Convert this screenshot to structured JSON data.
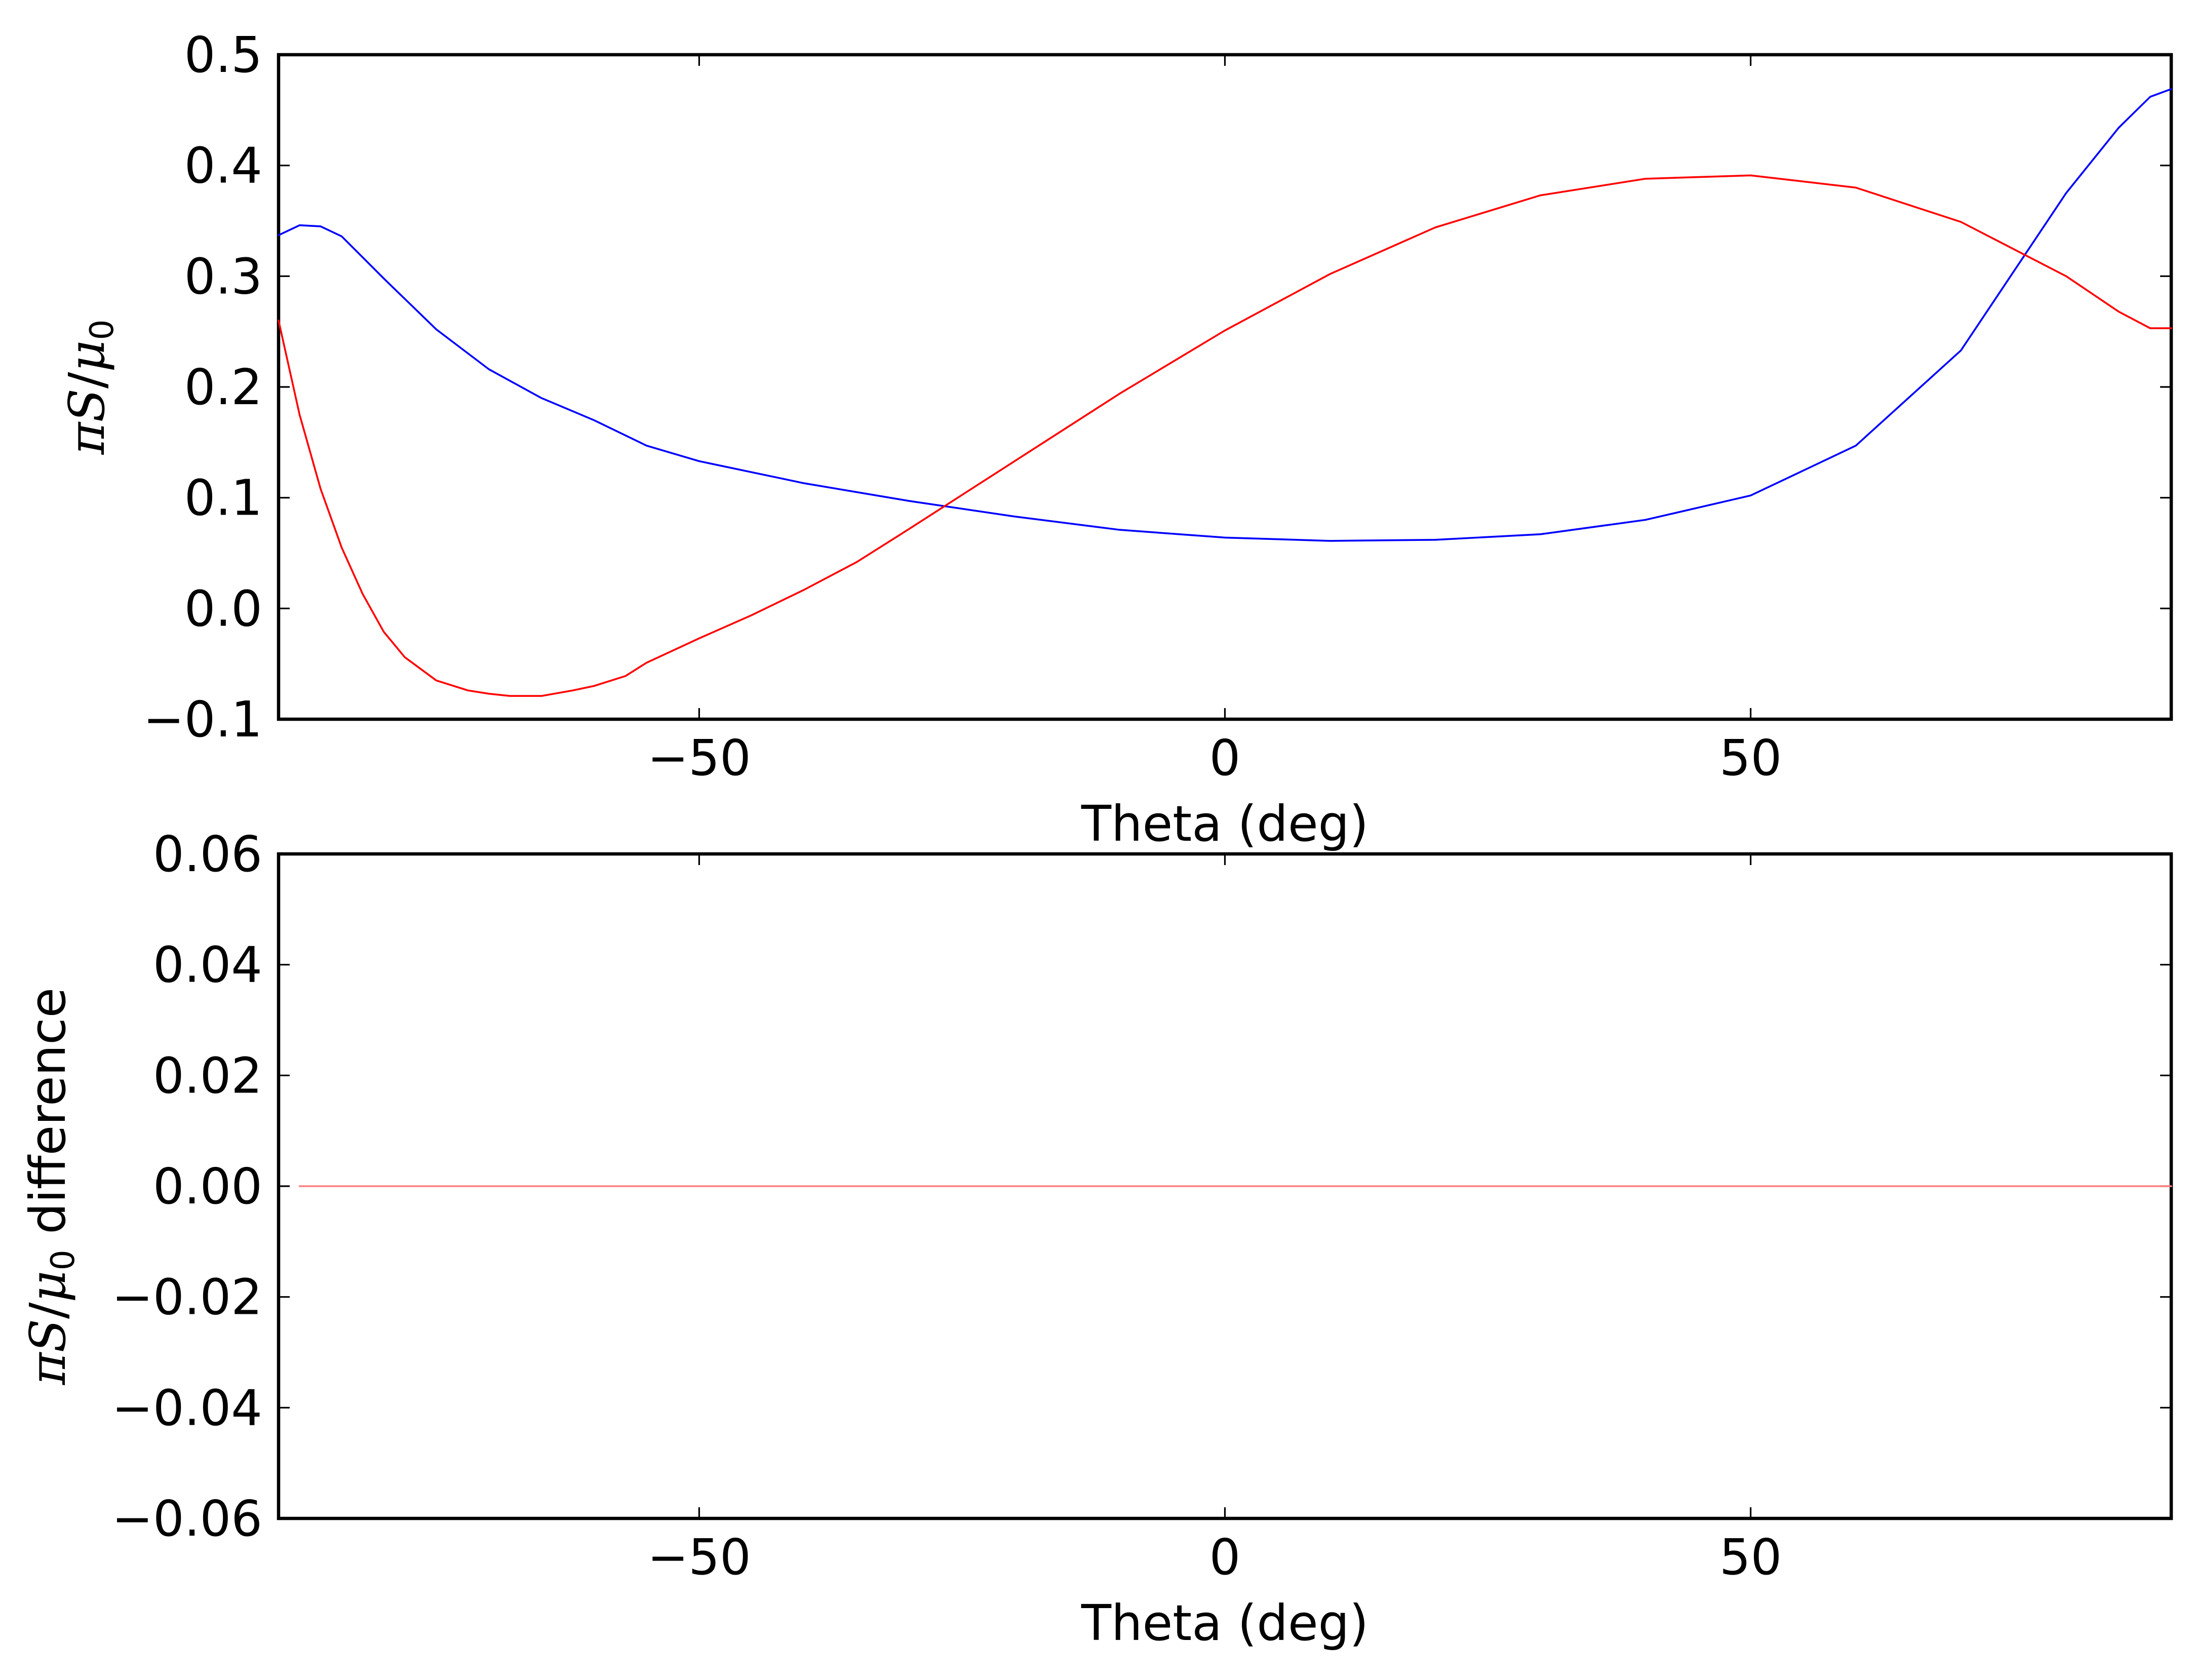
{
  "chart_data": [
    {
      "type": "line",
      "title": "",
      "xlabel": "Theta (deg)",
      "ylabel": "πS/μ0",
      "xlim": [
        -90,
        90
      ],
      "ylim": [
        -0.1,
        0.5
      ],
      "xticks": [
        -50,
        0,
        50
      ],
      "xtick_labels": [
        "−50",
        "0",
        "50"
      ],
      "yticks": [
        -0.1,
        0.0,
        0.1,
        0.2,
        0.3,
        0.4,
        0.5
      ],
      "ytick_labels": [
        "−0.1",
        "0.0",
        "0.1",
        "0.2",
        "0.3",
        "0.4",
        "0.5"
      ],
      "grid": false,
      "series": [
        {
          "color": "#0000ff",
          "x": [
            -90,
            -88,
            -86,
            -84,
            -80,
            -75,
            -70,
            -65,
            -60,
            -55,
            -50,
            -40,
            -30,
            -20,
            -10,
            0,
            10,
            20,
            30,
            40,
            50,
            60,
            70,
            80,
            85,
            88,
            90
          ],
          "y": [
            0.337,
            0.346,
            0.345,
            0.336,
            0.298,
            0.252,
            0.216,
            0.19,
            0.17,
            0.147,
            0.133,
            0.113,
            0.097,
            0.083,
            0.071,
            0.064,
            0.061,
            0.062,
            0.067,
            0.08,
            0.102,
            0.147,
            0.233,
            0.375,
            0.434,
            0.462,
            0.469
          ]
        },
        {
          "color": "#ff0000",
          "x": [
            -90,
            -88,
            -86,
            -84,
            -82,
            -80,
            -78,
            -75,
            -72,
            -70,
            -68,
            -65,
            -62,
            -60,
            -57,
            -55,
            -50,
            -45,
            -40,
            -35,
            -30,
            -20,
            -10,
            0,
            10,
            20,
            30,
            40,
            50,
            60,
            70,
            80,
            85,
            88,
            90
          ],
          "y": [
            0.26,
            0.175,
            0.108,
            0.055,
            0.013,
            -0.021,
            -0.044,
            -0.065,
            -0.074,
            -0.077,
            -0.079,
            -0.079,
            -0.074,
            -0.07,
            -0.061,
            -0.049,
            -0.027,
            -0.006,
            0.017,
            0.042,
            0.072,
            0.133,
            0.194,
            0.251,
            0.302,
            0.344,
            0.373,
            0.388,
            0.391,
            0.38,
            0.349,
            0.3,
            0.268,
            0.253,
            0.253
          ]
        }
      ]
    },
    {
      "type": "line",
      "title": "",
      "xlabel": "Theta (deg)",
      "ylabel": "πS/μ0 difference",
      "xlim": [
        -90,
        90
      ],
      "ylim": [
        -0.06,
        0.06
      ],
      "xticks": [
        -50,
        0,
        50
      ],
      "xtick_labels": [
        "−50",
        "0",
        "50"
      ],
      "yticks": [
        -0.06,
        -0.04,
        -0.02,
        0.0,
        0.02,
        0.04,
        0.06
      ],
      "ytick_labels": [
        "−0.06",
        "−0.04",
        "−0.02",
        "0.00",
        "0.02",
        "0.04",
        "0.06"
      ],
      "grid": false,
      "series": [
        {
          "color": "#ff0000",
          "x": [
            -88,
            90
          ],
          "y": [
            0.0,
            0.0
          ]
        }
      ]
    }
  ]
}
